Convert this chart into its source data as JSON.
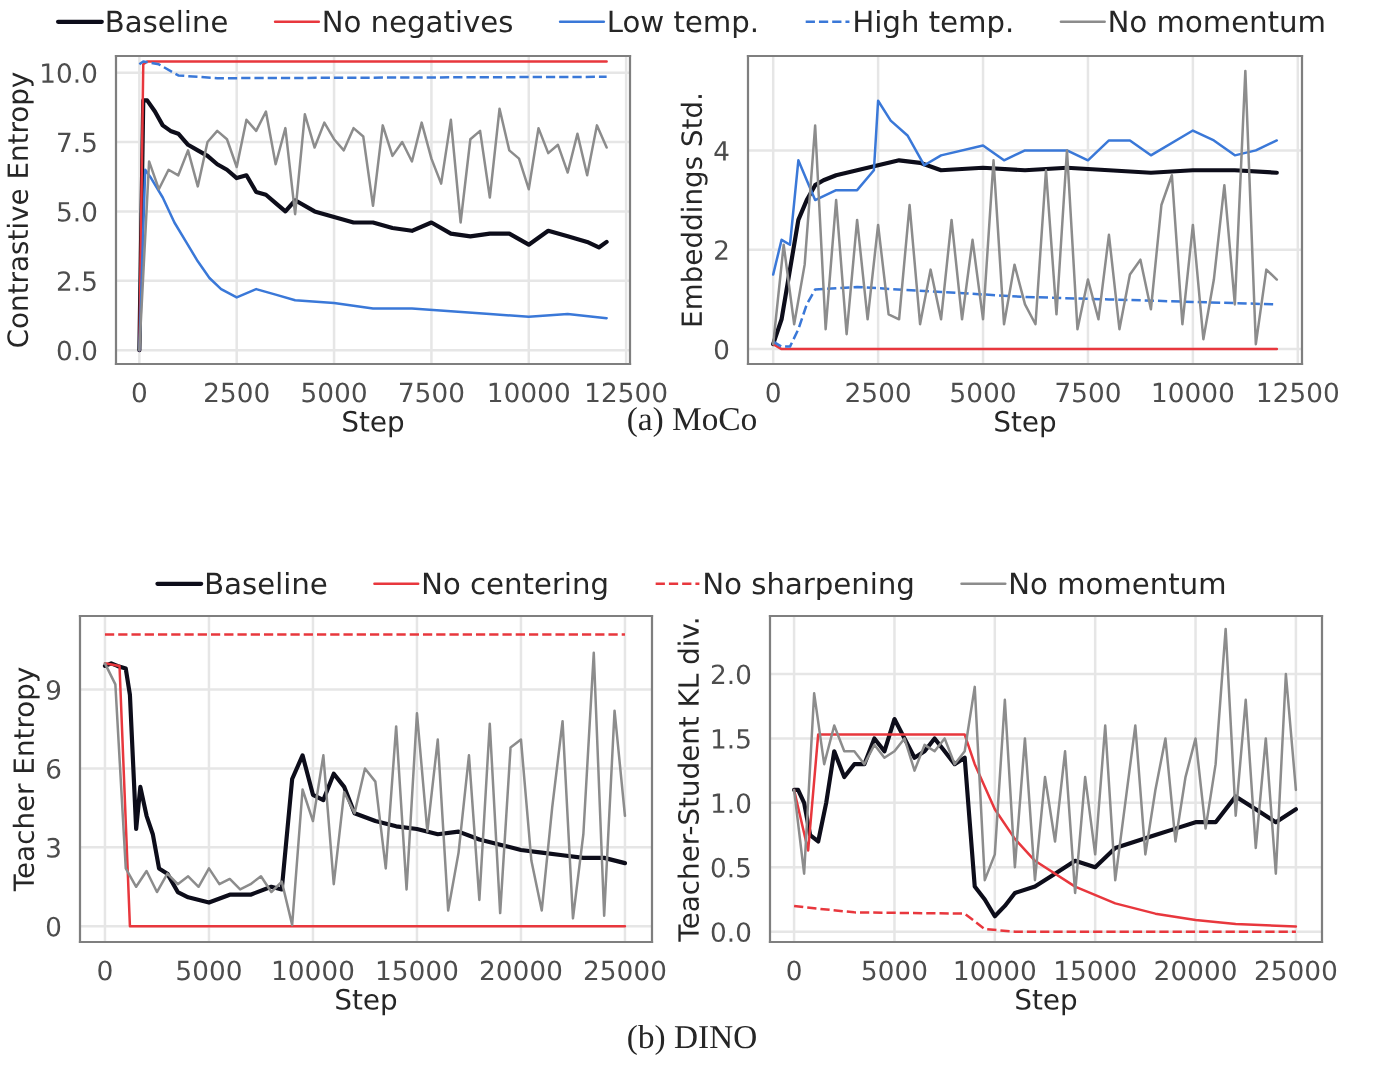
{
  "chart_data": [
    {
      "type": "line",
      "xlabel": "Step",
      "ylabel": "Contrastive Entropy",
      "xlim": [
        -600,
        12600
      ],
      "xticks": [
        0,
        2500,
        5000,
        7500,
        10000,
        12500
      ],
      "ylim": [
        -0.5,
        10.6
      ],
      "yticks": [
        {
          "value": 0,
          "label": "0.0"
        },
        {
          "value": 2.5,
          "label": "2.5"
        },
        {
          "value": 5,
          "label": "5.0"
        },
        {
          "value": 7.5,
          "label": "7.5"
        },
        {
          "value": 10,
          "label": "10.0"
        }
      ],
      "grid": true,
      "legend": "top",
      "annotations": [
        "(a) MoCo"
      ],
      "series": [
        {
          "name": "Baseline",
          "color": "#0d0d1a",
          "x": [
            0,
            100,
            200,
            400,
            600,
            800,
            1000,
            1250,
            1500,
            1750,
            2000,
            2250,
            2500,
            2750,
            3000,
            3250,
            3500,
            3750,
            4000,
            4500,
            5000,
            5500,
            6000,
            6500,
            7000,
            7500,
            8000,
            8500,
            9000,
            9500,
            10000,
            10500,
            11000,
            11500,
            11800,
            12000
          ],
          "values": [
            0,
            9.0,
            9.0,
            8.6,
            8.1,
            7.9,
            7.8,
            7.4,
            7.2,
            7.0,
            6.7,
            6.5,
            6.2,
            6.3,
            5.7,
            5.6,
            5.3,
            5.0,
            5.4,
            5.0,
            4.8,
            4.6,
            4.6,
            4.4,
            4.3,
            4.6,
            4.2,
            4.1,
            4.2,
            4.2,
            3.8,
            4.3,
            4.1,
            3.9,
            3.7,
            3.9
          ]
        },
        {
          "name": "No negatives",
          "color": "#e8373d",
          "x": [
            0,
            100,
            200,
            12000
          ],
          "values": [
            0,
            10.3,
            10.4,
            10.4
          ]
        },
        {
          "name": "Low temp.",
          "color": "#3a78d8",
          "x": [
            0,
            150,
            300,
            600,
            900,
            1200,
            1500,
            1800,
            2100,
            2500,
            3000,
            3500,
            4000,
            5000,
            6000,
            7000,
            8000,
            9000,
            10000,
            11000,
            12000
          ],
          "values": [
            0,
            6.5,
            6.2,
            5.5,
            4.6,
            3.9,
            3.2,
            2.6,
            2.2,
            1.9,
            2.2,
            2.0,
            1.8,
            1.7,
            1.5,
            1.5,
            1.4,
            1.3,
            1.2,
            1.3,
            1.15
          ]
        },
        {
          "name": "High temp.",
          "color": "#3a78d8",
          "line_style": "dashed",
          "x": [
            0,
            100,
            500,
            1000,
            2000,
            12000
          ],
          "values": [
            10.3,
            10.4,
            10.3,
            9.9,
            9.8,
            9.85
          ]
        },
        {
          "name": "No momentum",
          "color": "#8c8c8c",
          "x": [
            0,
            250,
            500,
            750,
            1000,
            1250,
            1500,
            1750,
            2000,
            2250,
            2500,
            2750,
            3000,
            3250,
            3500,
            3750,
            4000,
            4250,
            4500,
            4750,
            5000,
            5250,
            5500,
            5750,
            6000,
            6250,
            6500,
            6750,
            7000,
            7250,
            7500,
            7750,
            8000,
            8250,
            8500,
            8750,
            9000,
            9250,
            9500,
            9750,
            10000,
            10250,
            10500,
            10750,
            11000,
            11250,
            11500,
            11750,
            12000
          ],
          "values": [
            0,
            6.8,
            5.8,
            6.5,
            6.3,
            7.2,
            5.9,
            7.5,
            7.9,
            7.6,
            6.6,
            8.3,
            7.9,
            8.6,
            6.7,
            8.0,
            4.9,
            8.5,
            7.3,
            8.2,
            7.6,
            7.2,
            8.0,
            7.7,
            5.2,
            8.1,
            7.0,
            7.5,
            6.8,
            8.2,
            6.9,
            6.0,
            8.3,
            4.6,
            7.6,
            7.9,
            5.5,
            8.7,
            7.2,
            6.9,
            5.8,
            8.0,
            7.1,
            7.4,
            6.4,
            7.8,
            6.3,
            8.1,
            7.3
          ]
        }
      ]
    },
    {
      "type": "line",
      "xlabel": "Step",
      "ylabel": "Embeddings Std.",
      "xlim": [
        -600,
        12600
      ],
      "xticks": [
        0,
        2500,
        5000,
        7500,
        10000,
        12500
      ],
      "ylim": [
        -0.3,
        5.9
      ],
      "yticks": [
        0,
        2,
        4
      ],
      "grid": true,
      "series": [
        {
          "color": "#0d0d1a",
          "x": [
            0,
            200,
            400,
            600,
            800,
            1000,
            1200,
            1500,
            2000,
            2500,
            3000,
            3500,
            4000,
            5000,
            6000,
            7000,
            8000,
            9000,
            10000,
            11000,
            12000
          ],
          "values": [
            0.1,
            0.6,
            1.6,
            2.6,
            3.0,
            3.3,
            3.4,
            3.5,
            3.6,
            3.7,
            3.8,
            3.75,
            3.6,
            3.65,
            3.6,
            3.65,
            3.6,
            3.55,
            3.6,
            3.6,
            3.55
          ]
        },
        {
          "color": "#e8373d",
          "x": [
            0,
            200,
            12000
          ],
          "values": [
            0.1,
            0,
            0
          ]
        },
        {
          "color": "#3a78d8",
          "x": [
            0,
            200,
            400,
            600,
            800,
            1000,
            1500,
            2000,
            2400,
            2500,
            2800,
            3200,
            3600,
            4000,
            5000,
            5500,
            6000,
            7000,
            7500,
            8000,
            8500,
            9000,
            10000,
            10500,
            11000,
            11500,
            12000
          ],
          "values": [
            1.5,
            2.2,
            2.1,
            3.8,
            3.4,
            3.0,
            3.2,
            3.2,
            3.6,
            5.0,
            4.6,
            4.3,
            3.7,
            3.9,
            4.1,
            3.8,
            4.0,
            4.0,
            3.8,
            4.2,
            4.2,
            3.9,
            4.4,
            4.2,
            3.9,
            4.0,
            4.2
          ]
        },
        {
          "color": "#3a78d8",
          "line_style": "dashed",
          "x": [
            0,
            200,
            400,
            600,
            800,
            1000,
            2000,
            4000,
            6000,
            8000,
            10000,
            12000
          ],
          "values": [
            0.15,
            0.05,
            0.05,
            0.4,
            0.9,
            1.2,
            1.25,
            1.15,
            1.05,
            1.0,
            0.95,
            0.9
          ]
        },
        {
          "color": "#8c8c8c",
          "x": [
            0,
            250,
            500,
            750,
            1000,
            1250,
            1500,
            1750,
            2000,
            2250,
            2500,
            2750,
            3000,
            3250,
            3500,
            3750,
            4000,
            4250,
            4500,
            4750,
            5000,
            5250,
            5500,
            5750,
            6000,
            6250,
            6500,
            6750,
            7000,
            7250,
            7500,
            7750,
            8000,
            8250,
            8500,
            8750,
            9000,
            9250,
            9500,
            9750,
            10000,
            10250,
            10500,
            10750,
            11000,
            11250,
            11500,
            11750,
            12000
          ],
          "values": [
            0.1,
            2.1,
            0.5,
            1.7,
            4.5,
            0.4,
            3.0,
            0.3,
            2.6,
            0.6,
            2.5,
            0.7,
            0.6,
            2.9,
            0.5,
            1.6,
            0.6,
            2.6,
            0.6,
            2.2,
            0.6,
            3.8,
            0.5,
            1.7,
            0.9,
            0.5,
            3.6,
            0.7,
            4.0,
            0.4,
            1.4,
            0.6,
            2.3,
            0.4,
            1.5,
            1.8,
            0.8,
            2.9,
            3.5,
            0.5,
            2.5,
            0.2,
            1.4,
            3.3,
            0.9,
            5.6,
            0.1,
            1.6,
            1.4
          ]
        }
      ]
    },
    {
      "type": "line",
      "xlabel": "Step",
      "ylabel": "Teacher Entropy",
      "xlim": [
        -1200,
        26300
      ],
      "xticks": [
        0,
        5000,
        10000,
        15000,
        20000,
        25000
      ],
      "ylim": [
        -0.6,
        11.8
      ],
      "yticks": [
        0,
        3,
        6,
        9
      ],
      "grid": true,
      "legend": "top",
      "annotations": [
        "(b) DINO"
      ],
      "series": [
        {
          "name": "Baseline",
          "color": "#0d0d1a",
          "x": [
            0,
            300,
            600,
            1000,
            1200,
            1500,
            1700,
            2000,
            2300,
            2600,
            3000,
            3500,
            4000,
            5000,
            6000,
            7000,
            8000,
            8500,
            9000,
            9500,
            10000,
            10500,
            11000,
            11500,
            12000,
            13000,
            14000,
            15000,
            16000,
            17000,
            18000,
            19000,
            20000,
            21000,
            22000,
            23000,
            24000,
            25000
          ],
          "values": [
            9.9,
            10.0,
            9.9,
            9.8,
            8.8,
            3.7,
            5.3,
            4.2,
            3.5,
            2.2,
            2.0,
            1.3,
            1.1,
            0.9,
            1.2,
            1.2,
            1.5,
            1.4,
            5.6,
            6.5,
            5.0,
            4.8,
            5.8,
            5.3,
            4.3,
            4.0,
            3.8,
            3.7,
            3.5,
            3.6,
            3.3,
            3.1,
            2.9,
            2.8,
            2.7,
            2.6,
            2.6,
            2.4
          ]
        },
        {
          "name": "No centering",
          "color": "#e8373d",
          "x": [
            0,
            700,
            1200,
            25000
          ],
          "values": [
            10.0,
            9.9,
            0,
            0
          ]
        },
        {
          "name": "No sharpening",
          "color": "#e8373d",
          "line_style": "dashed",
          "x": [
            0,
            25000
          ],
          "values": [
            11.1,
            11.1
          ]
        },
        {
          "name": "No momentum",
          "color": "#8c8c8c",
          "x": [
            0,
            500,
            1000,
            1500,
            2000,
            2500,
            3000,
            3500,
            4000,
            4500,
            5000,
            5500,
            6000,
            6500,
            7000,
            7500,
            8000,
            8500,
            9000,
            9500,
            10000,
            10500,
            11000,
            11500,
            12000,
            12500,
            13000,
            13500,
            14000,
            14500,
            15000,
            15500,
            16000,
            16500,
            17000,
            17500,
            18000,
            18500,
            19000,
            19500,
            20000,
            20500,
            21000,
            21500,
            22000,
            22500,
            23000,
            23500,
            24000,
            24500,
            25000
          ],
          "values": [
            10.0,
            9.2,
            2.2,
            1.5,
            2.1,
            1.3,
            2.0,
            1.6,
            1.9,
            1.5,
            2.2,
            1.6,
            1.8,
            1.4,
            1.6,
            1.9,
            1.3,
            1.7,
            0.05,
            5.2,
            4.0,
            6.5,
            1.6,
            5.1,
            4.3,
            6.0,
            5.5,
            2.2,
            7.6,
            1.4,
            8.1,
            3.6,
            7.1,
            0.6,
            2.8,
            6.5,
            1.0,
            7.7,
            0.5,
            6.8,
            7.1,
            2.5,
            0.6,
            4.5,
            7.8,
            0.3,
            3.5,
            10.4,
            0.4,
            8.2,
            4.2
          ]
        }
      ]
    },
    {
      "type": "line",
      "xlabel": "Step",
      "ylabel": "Teacher-Student KL div.",
      "xlim": [
        -1200,
        26300
      ],
      "xticks": [
        0,
        5000,
        10000,
        15000,
        20000,
        25000
      ],
      "ylim": [
        -0.08,
        2.45
      ],
      "yticks": [
        {
          "value": 0,
          "label": "0.0"
        },
        {
          "value": 0.5,
          "label": "0.5"
        },
        {
          "value": 1,
          "label": "1.0"
        },
        {
          "value": 1.5,
          "label": "1.5"
        },
        {
          "value": 2,
          "label": "2.0"
        }
      ],
      "grid": true,
      "series": [
        {
          "color": "#0d0d1a",
          "x": [
            0,
            200,
            500,
            800,
            1200,
            1600,
            2000,
            2500,
            3000,
            3500,
            4000,
            4500,
            5000,
            5500,
            6000,
            6500,
            7000,
            7500,
            8000,
            8500,
            9000,
            9500,
            10000,
            10500,
            11000,
            12000,
            13000,
            14000,
            15000,
            16000,
            17000,
            18000,
            19000,
            20000,
            21000,
            22000,
            23000,
            24000,
            25000
          ],
          "values": [
            1.1,
            1.1,
            1.0,
            0.75,
            0.7,
            1.0,
            1.4,
            1.2,
            1.3,
            1.3,
            1.5,
            1.4,
            1.65,
            1.5,
            1.35,
            1.4,
            1.5,
            1.4,
            1.3,
            1.35,
            0.35,
            0.25,
            0.12,
            0.2,
            0.3,
            0.35,
            0.45,
            0.55,
            0.5,
            0.65,
            0.7,
            0.75,
            0.8,
            0.85,
            0.85,
            1.05,
            0.95,
            0.85,
            0.95
          ]
        },
        {
          "color": "#e8373d",
          "x": [
            0,
            700,
            1200,
            8500,
            9000,
            10000,
            11000,
            12000,
            14000,
            16000,
            18000,
            20000,
            22000,
            25000
          ],
          "values": [
            1.1,
            0.63,
            1.53,
            1.53,
            1.3,
            0.95,
            0.72,
            0.55,
            0.35,
            0.22,
            0.14,
            0.09,
            0.06,
            0.04
          ]
        },
        {
          "color": "#e8373d",
          "line_style": "dashed",
          "x": [
            0,
            500,
            3000,
            8500,
            9500,
            11000,
            25000
          ],
          "values": [
            0.2,
            0.19,
            0.15,
            0.14,
            0.02,
            0.0,
            0.0
          ]
        },
        {
          "color": "#8c8c8c",
          "x": [
            0,
            500,
            1000,
            1500,
            2000,
            2500,
            3000,
            3500,
            4000,
            4500,
            5000,
            5500,
            6000,
            6500,
            7000,
            7500,
            8000,
            8500,
            9000,
            9500,
            10000,
            10500,
            11000,
            11500,
            12000,
            12500,
            13000,
            13500,
            14000,
            14500,
            15000,
            15500,
            16000,
            16500,
            17000,
            17500,
            18000,
            18500,
            19000,
            19500,
            20000,
            20500,
            21000,
            21500,
            22000,
            22500,
            23000,
            23500,
            24000,
            24500,
            25000
          ],
          "values": [
            1.1,
            0.45,
            1.85,
            1.3,
            1.6,
            1.4,
            1.4,
            1.3,
            1.45,
            1.35,
            1.4,
            1.5,
            1.25,
            1.45,
            1.4,
            1.5,
            1.3,
            1.4,
            1.9,
            0.4,
            0.6,
            1.8,
            0.5,
            1.5,
            0.4,
            1.2,
            0.7,
            1.4,
            0.3,
            1.2,
            0.6,
            1.6,
            0.4,
            1.0,
            1.6,
            0.6,
            1.1,
            1.5,
            0.7,
            1.2,
            1.5,
            0.8,
            1.3,
            2.35,
            0.9,
            1.8,
            0.65,
            1.5,
            0.45,
            2.0,
            1.1
          ]
        }
      ]
    }
  ]
}
